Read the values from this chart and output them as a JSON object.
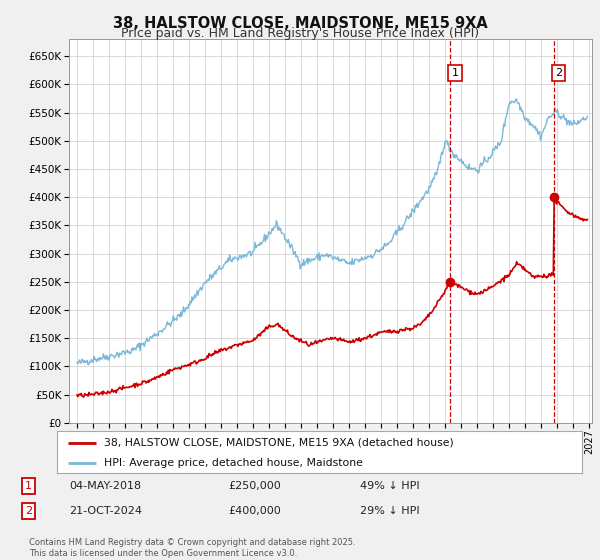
{
  "title": "38, HALSTOW CLOSE, MAIDSTONE, ME15 9XA",
  "subtitle": "Price paid vs. HM Land Registry's House Price Index (HPI)",
  "ylim": [
    0,
    680000
  ],
  "yticks": [
    0,
    50000,
    100000,
    150000,
    200000,
    250000,
    300000,
    350000,
    400000,
    450000,
    500000,
    550000,
    600000,
    650000
  ],
  "xlim_start": 1994.5,
  "xlim_end": 2027.2,
  "hpi_color": "#7ab8d9",
  "price_color": "#cc0000",
  "vline_color": "#cc0000",
  "marker1_x": 2018.34,
  "marker1_y": 250000,
  "marker2_x": 2024.8,
  "marker2_y": 400000,
  "legend_price_label": "38, HALSTOW CLOSE, MAIDSTONE, ME15 9XA (detached house)",
  "legend_hpi_label": "HPI: Average price, detached house, Maidstone",
  "annotation1_num": "1",
  "annotation1_date": "04-MAY-2018",
  "annotation1_price": "£250,000",
  "annotation1_hpi": "49% ↓ HPI",
  "annotation2_num": "2",
  "annotation2_date": "21-OCT-2024",
  "annotation2_price": "£400,000",
  "annotation2_hpi": "29% ↓ HPI",
  "footer": "Contains HM Land Registry data © Crown copyright and database right 2025.\nThis data is licensed under the Open Government Licence v3.0.",
  "background_color": "#f0f0f0",
  "plot_background_color": "#ffffff",
  "grid_color": "#cccccc",
  "title_fontsize": 10.5,
  "subtitle_fontsize": 9
}
